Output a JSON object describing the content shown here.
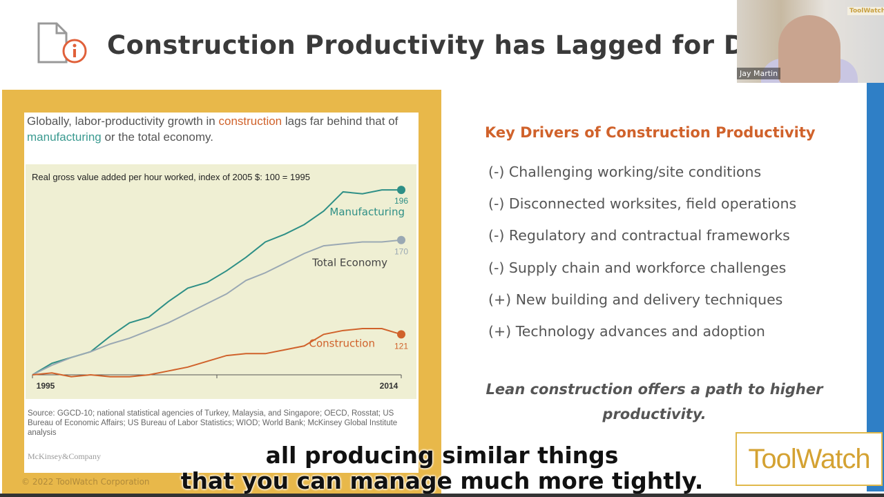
{
  "slide": {
    "title": "Construction Productivity has Lagged for Decades",
    "copyright": "© 2022 ToolWatch Corporation",
    "logo": "ToolWatch"
  },
  "figure": {
    "headline_parts": [
      "Globally, labor-productivity growth in ",
      "construction",
      " lags far behind that of ",
      "manufacturing",
      " or the total economy."
    ],
    "source": "Source: GGCD-10; national statistical agencies of Turkey, Malaysia, and Singapore; OECD, Rosstat; US Bureau of Economic Affairs; US Bureau of Labor Statistics; WIOD; World Bank; McKinsey Global Institute analysis",
    "brand": "McKinsey&Company"
  },
  "chart_data": {
    "type": "line",
    "title_bold": "Real gross value added per hour worked,",
    "title_rest": " index of 2005 $: 100 = 1995",
    "x": [
      1995,
      1996,
      1997,
      1998,
      1999,
      2000,
      2001,
      2002,
      2003,
      2004,
      2005,
      2006,
      2007,
      2008,
      2009,
      2010,
      2011,
      2012,
      2013,
      2014
    ],
    "x_tick_labels": [
      "1995",
      "2014"
    ],
    "ylim": [
      95,
      200
    ],
    "grid": false,
    "series": [
      {
        "name": "Manufacturing",
        "end_label": "196",
        "color": "#2e8f86",
        "values": [
          100,
          106,
          109,
          112,
          120,
          127,
          130,
          138,
          145,
          148,
          154,
          161,
          169,
          173,
          178,
          185,
          195,
          194,
          196,
          196
        ]
      },
      {
        "name": "Total Economy",
        "end_label": "170",
        "color": "#9aa8b3",
        "values": [
          100,
          105,
          109,
          112,
          116,
          119,
          123,
          127,
          132,
          137,
          142,
          149,
          153,
          158,
          163,
          167,
          168,
          169,
          169,
          170
        ]
      },
      {
        "name": "Construction",
        "end_label": "121",
        "color": "#d0622b",
        "values": [
          100,
          101,
          99,
          100,
          99,
          99,
          100,
          102,
          104,
          107,
          110,
          111,
          111,
          113,
          115,
          121,
          123,
          124,
          124,
          121
        ]
      }
    ]
  },
  "drivers": {
    "title": "Key Drivers of Construction Productivity",
    "items": [
      "(-) Challenging working/site conditions",
      "(-) Disconnected worksites, field operations",
      "(-) Regulatory and contractual frameworks",
      "(-) Supply chain and workforce challenges",
      "(+) New building and delivery techniques",
      "(+) Technology advances and adoption"
    ],
    "conclusion": "Lean construction offers a path to higher productivity."
  },
  "webcam": {
    "participant_name": "Jay Martin",
    "overlay_logo": "ToolWatch"
  },
  "captions": [
    "all producing similar things",
    "that you can manage much more tightly."
  ],
  "colors": {
    "accent_orange": "#d0622b",
    "panel_yellow": "#e8b84a",
    "blue_bar": "#2f7fc6",
    "teal": "#2e8f86"
  }
}
